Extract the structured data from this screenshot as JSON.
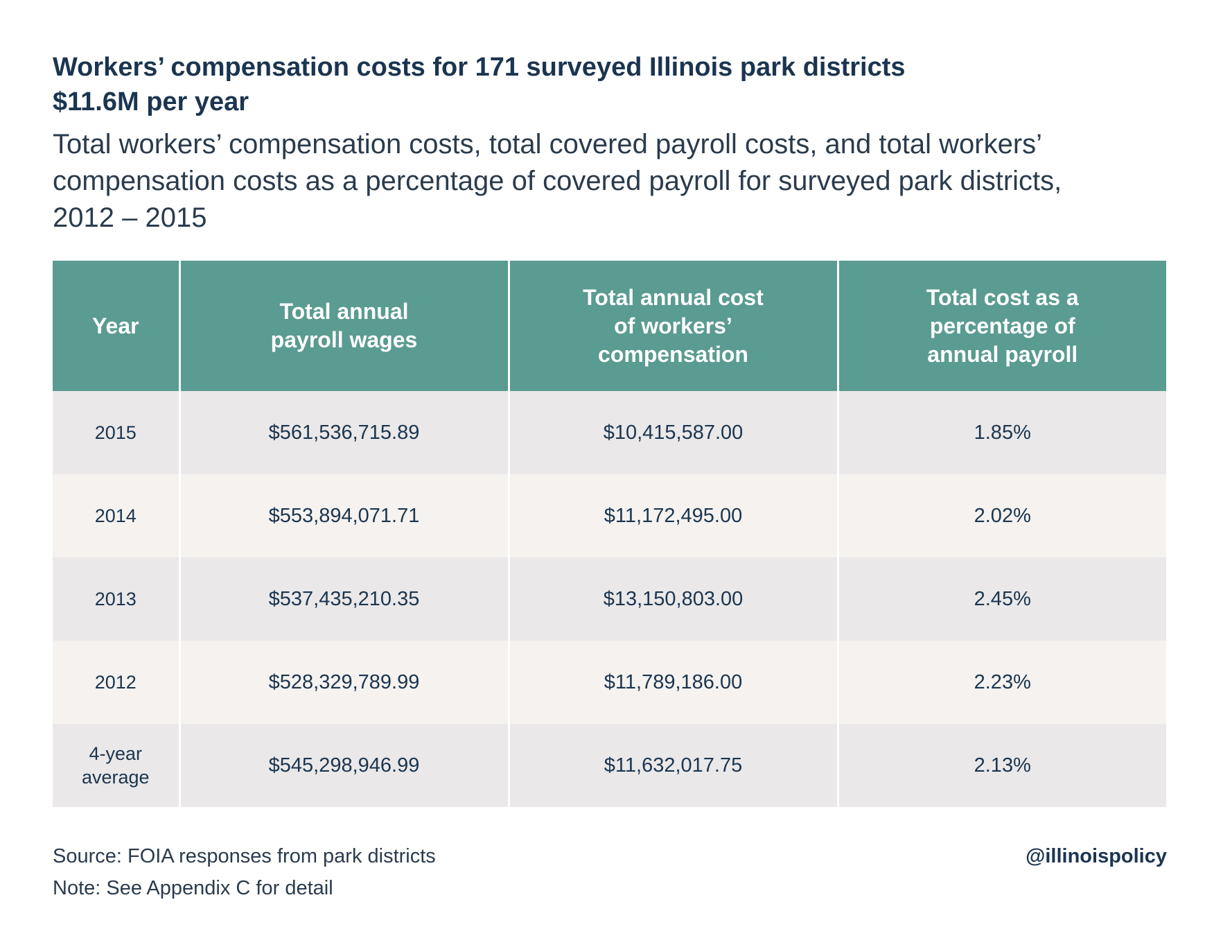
{
  "header": {
    "title_line1": "Workers’ compensation costs for 171 surveyed Illinois park districts",
    "title_line2": "$11.6M per year",
    "subtitle_line1": "Total workers’ compensation costs, total covered payroll costs, and total workers’",
    "subtitle_line2": "compensation costs as a percentage of covered payroll for surveyed park districts,",
    "subtitle_line3": "2012 – 2015"
  },
  "chart_data": {
    "type": "table",
    "columns": [
      "Year",
      "Total annual payroll wages",
      "Total annual cost of workers’ compensation",
      "Total cost as a percentage of annual payroll"
    ],
    "column_lines": [
      [
        "Year"
      ],
      [
        "Total annual",
        "payroll wages"
      ],
      [
        "Total annual cost",
        "of workers’",
        "compensation"
      ],
      [
        "Total cost as a",
        "percentage of",
        "annual payroll"
      ]
    ],
    "rows": [
      {
        "year_lines": [
          "2015"
        ],
        "payroll": "$561,536,715.89",
        "comp_cost": "$10,415,587.00",
        "percent": "1.85%"
      },
      {
        "year_lines": [
          "2014"
        ],
        "payroll": "$553,894,071.71",
        "comp_cost": "$11,172,495.00",
        "percent": "2.02%"
      },
      {
        "year_lines": [
          "2013"
        ],
        "payroll": "$537,435,210.35",
        "comp_cost": "$13,150,803.00",
        "percent": "2.45%"
      },
      {
        "year_lines": [
          "2012"
        ],
        "payroll": "$528,329,789.99",
        "comp_cost": "$11,789,186.00",
        "percent": "2.23%"
      },
      {
        "year_lines": [
          "4-year",
          "average"
        ],
        "payroll": "$545,298,946.99",
        "comp_cost": "$11,632,017.75",
        "percent": "2.13%"
      }
    ]
  },
  "footer": {
    "source": "Source: FOIA responses from park districts",
    "note": "Note: See Appendix C for detail",
    "handle": "@illinoispolicy"
  },
  "colors": {
    "header_bg": "#5a9b92",
    "row_odd_bg": "#eae8e8",
    "row_even_bg": "#f5f2ef",
    "text_dark": "#1b3550"
  }
}
